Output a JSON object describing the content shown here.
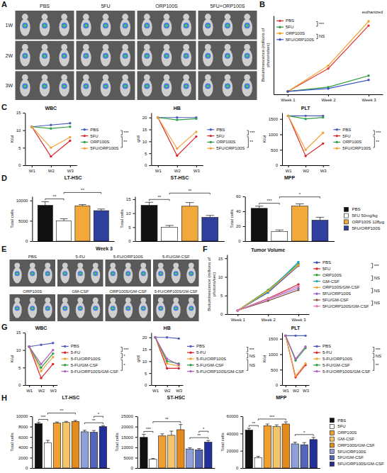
{
  "chart_data": [
    {
      "panel": "A",
      "type": "image",
      "columns": [
        "PBS",
        "5FU",
        "ORP100S",
        "5FU+ORP100S"
      ],
      "rows": [
        "1W",
        "2W",
        "3W"
      ]
    },
    {
      "panel": "B",
      "type": "line",
      "y_label": "Bioluminescence (millions of photons/sec)",
      "categories": [
        "Week 1",
        "Week 2",
        "Week 3"
      ],
      "series": [
        {
          "name": "PBS",
          "color": "#e0383a",
          "values": [
            0.4,
            3.6,
            9.6
          ]
        },
        {
          "name": "5FU",
          "color": "#2e9e3e",
          "values": [
            0.4,
            1.0,
            2.6
          ]
        },
        {
          "name": "ORP100S",
          "color": "#f0a020",
          "values": [
            0.4,
            4.0,
            10.2
          ]
        },
        {
          "name": "5FU/ORP100S",
          "color": "#3c55c8",
          "values": [
            0.4,
            0.8,
            2.0
          ]
        }
      ],
      "ylim": [
        0,
        11
      ],
      "tick_labels": "x",
      "legend": "upper left",
      "marker": "circle",
      "annotations": [
        {
          "text": "***",
          "from": "PBS",
          "to": "5FU"
        },
        {
          "text": "NS",
          "from": "ORP100S",
          "to": "5FU/ORP100S"
        }
      ],
      "note": "euthanized"
    },
    {
      "panel": "C",
      "type": "line",
      "categories": [
        "W1",
        "W2",
        "W3"
      ],
      "marker": "circle",
      "legend": "right",
      "series": [
        {
          "name": "PBS",
          "color": "#4b5cb8"
        },
        {
          "name": "5FU",
          "color": "#d9262b"
        },
        {
          "name": "ORP100S",
          "color": "#2f9e44"
        },
        {
          "name": "5FU/ORP100S",
          "color": "#f2a33a"
        }
      ],
      "subplots": [
        {
          "title": "WBC",
          "y_label": "K/ul",
          "ylim": [
            0,
            15
          ],
          "yticks": [
            0,
            5,
            10,
            15
          ],
          "values": [
            [
              11,
              11.5,
              12
            ],
            [
              11,
              2.5,
              7
            ],
            [
              11,
              10.5,
              11
            ],
            [
              11,
              5,
              8
            ]
          ],
          "annotations": [
            {
              "text": "***",
              "from": "PBS",
              "to": "5FU"
            },
            {
              "text": "**",
              "from": "5FU",
              "to": "5FU/ORP100S"
            }
          ]
        },
        {
          "title": "HB",
          "y_label": "g/dl",
          "ylim": [
            0,
            22
          ],
          "yticks": [
            0,
            5,
            10,
            15,
            20
          ],
          "values": [
            [
              20,
              20,
              20
            ],
            [
              20,
              4,
              12
            ],
            [
              20,
              19,
              19.5
            ],
            [
              20,
              7,
              14
            ]
          ],
          "annotations": [
            {
              "text": "***",
              "from": "PBS",
              "to": "5FU"
            },
            {
              "text": "**",
              "from": "5FU",
              "to": "5FU/ORP100S"
            }
          ]
        },
        {
          "title": "PLT",
          "y_label": "K/ul",
          "ylim": [
            0,
            1700
          ],
          "yticks": [
            0,
            500,
            1000,
            1500
          ],
          "values": [
            [
              1600,
              1600,
              1600
            ],
            [
              1600,
              300,
              700
            ],
            [
              1600,
              1500,
              1550
            ],
            [
              1600,
              500,
              1050
            ]
          ],
          "annotations": [
            {
              "text": "***",
              "from": "PBS",
              "to": "5FU"
            },
            {
              "text": "**",
              "from": "5FU",
              "to": "5FU/ORP100S"
            }
          ]
        }
      ]
    },
    {
      "panel": "D",
      "type": "bar",
      "categories": [
        "PBS",
        "5FU 50mg/kg",
        "ORP100S 128μg",
        "5FU/ORP100S"
      ],
      "colors": [
        "#111111",
        "#ffffff",
        "#f2a93b",
        "#2f3f9e"
      ],
      "legend": "right",
      "tick_labels": "y",
      "y_label": "Total cells",
      "subplots": [
        {
          "title": "LT-HSC",
          "ylim": [
            0,
            11000
          ],
          "yticks": [
            0,
            5000,
            10000
          ],
          "values": [
            8800,
            5000,
            8700,
            7500
          ],
          "errors": [
            900,
            500,
            300,
            400
          ],
          "annotations": [
            {
              "text": "**",
              "from": "PBS",
              "to": "5FU 50mg/kg"
            },
            {
              "text": "**",
              "from": "5FU 50mg/kg",
              "to": "5FU/ORP100S"
            }
          ]
        },
        {
          "title": "ST-HSC",
          "ylim": [
            0,
            16
          ],
          "yticks": [
            0,
            5,
            10,
            15
          ],
          "values": [
            12.8,
            5,
            12.5,
            8.5
          ],
          "errors": [
            1.1,
            0.6,
            1.3,
            0.7
          ],
          "annotations": [
            {
              "text": "**",
              "from": "PBS",
              "to": "5FU 50mg/kg"
            },
            {
              "text": "**",
              "from": "5FU 50mg/kg",
              "to": "5FU/ORP100S"
            }
          ]
        },
        {
          "title": "MPP",
          "ylim": [
            0,
            60
          ],
          "yticks": [
            0,
            20,
            40,
            60
          ],
          "values": [
            44,
            13,
            47,
            28
          ],
          "errors": [
            3,
            2,
            3,
            4
          ],
          "annotations": [
            {
              "text": "***",
              "from": "PBS",
              "to": "5FU 50mg/kg"
            },
            {
              "text": "*",
              "from": "5FU 50mg/kg",
              "to": "5FU/ORP100S"
            }
          ]
        }
      ]
    },
    {
      "panel": "E",
      "type": "image",
      "title": "Week 3",
      "groups": [
        "PBS",
        "5-FU",
        "5-FU/ORP100S",
        "5-FU/GM-CSF",
        "ORP100S",
        "GM-CSF",
        "ORP100S/GM-CSF",
        "5-FU/ORP100S/GM-CSF"
      ]
    },
    {
      "panel": "F",
      "type": "line",
      "title": "Tumor Volume",
      "y_label": "Bioluminescence (millions of photons/sec)",
      "categories": [
        "Week 1",
        "Week 2",
        "Week 3"
      ],
      "ylim": [
        0,
        16
      ],
      "yticks": [
        0,
        5,
        10,
        15
      ],
      "marker": "circle",
      "legend": "right",
      "series": [
        {
          "name": "PBS",
          "color": "#3b4ba8",
          "values": [
            1,
            5.8,
            13
          ]
        },
        {
          "name": "5FU",
          "color": "#d62728",
          "values": [
            1,
            4.2,
            8
          ]
        },
        {
          "name": "ORP100S",
          "color": "#2ca02c",
          "values": [
            1,
            6.5,
            13.5
          ]
        },
        {
          "name": "GM-CSF",
          "color": "#17a2b8",
          "values": [
            1,
            6,
            14
          ]
        },
        {
          "name": "ORP100S/GM-CSF",
          "color": "#f2a33a",
          "values": [
            1,
            6.2,
            13.2
          ]
        },
        {
          "name": "5FU/ORP100S",
          "color": "#9467bd",
          "values": [
            1,
            4,
            7
          ]
        },
        {
          "name": "5FU/GM-CSF",
          "color": "#8c564b",
          "values": [
            1,
            3.6,
            6.5
          ]
        },
        {
          "name": "5FU/ORP100S/GM-CSF",
          "color": "#e377c2",
          "values": [
            1,
            4.1,
            7.5
          ]
        }
      ],
      "annotations": [
        {
          "text": "***",
          "from": "PBS",
          "to": "5FU"
        },
        {
          "text": "NS",
          "from": "ORP100S",
          "to": "GM-CSF"
        },
        {
          "text": "NS",
          "from": "ORP100S/GM-CSF",
          "to": "5FU/ORP100S"
        },
        {
          "text": "NS",
          "from": "5FU/GM-CSF",
          "to": "5FU/ORP100S/GM-CSF"
        }
      ]
    },
    {
      "panel": "G",
      "type": "line",
      "categories": [
        "W1",
        "W2",
        "W3"
      ],
      "marker": "circle",
      "legend": "right",
      "series": [
        {
          "name": "PBS",
          "color": "#4b5cb8"
        },
        {
          "name": "5-FU",
          "color": "#d9262b"
        },
        {
          "name": "5-FU/ORP100S",
          "color": "#f2a33a"
        },
        {
          "name": "5-FU/GM-CSF",
          "color": "#2f9e44"
        },
        {
          "name": "5-FU/ORP100S/GM-CSF",
          "color": "#b05fc0"
        }
      ],
      "subplots": [
        {
          "title": "WBC",
          "y_label": "K/ul",
          "ylim": [
            0,
            15
          ],
          "yticks": [
            0,
            5,
            10,
            15
          ],
          "values": [
            [
              11,
              11.5,
              12
            ],
            [
              11,
              2,
              6
            ],
            [
              11,
              4,
              8
            ],
            [
              11,
              5,
              9
            ],
            [
              11,
              6,
              10
            ]
          ],
          "annotations": [
            {
              "text": "***",
              "from": "PBS",
              "to": "5-FU"
            },
            {
              "text": "*",
              "from": "5-FU",
              "to": "5-FU/ORP100S"
            },
            {
              "text": "*",
              "from": "5-FU/ORP100S",
              "to": "5-FU/ORP100S/GM-CSF"
            }
          ]
        },
        {
          "title": "HB",
          "y_label": "g/dl",
          "ylim": [
            0,
            22
          ],
          "yticks": [
            0,
            5,
            10,
            15,
            20
          ],
          "values": [
            [
              20,
              20,
              19.5
            ],
            [
              20,
              7,
              7
            ],
            [
              20,
              9,
              8
            ],
            [
              20,
              10,
              9
            ],
            [
              20,
              11,
              8.5
            ]
          ],
          "annotations": [
            {
              "text": "***",
              "from": "PBS",
              "to": "5-FU"
            },
            {
              "text": "NS",
              "from": "5-FU",
              "to": "5-FU/ORP100S"
            },
            {
              "text": "NS",
              "from": "5-FU/ORP100S",
              "to": "5-FU/ORP100S/GM-CSF"
            }
          ]
        },
        {
          "title": "PLT",
          "y_label": "K/ul",
          "ylim": [
            0,
            1700
          ],
          "yticks": [
            0,
            500,
            1000,
            1500
          ],
          "values": [
            [
              1600,
              1600,
              1600
            ],
            [
              1600,
              250,
              650
            ],
            [
              1600,
              300,
              700
            ],
            [
              1600,
              800,
              1200
            ],
            [
              1600,
              850,
              1250
            ]
          ],
          "annotations": [
            {
              "text": "***",
              "from": "PBS",
              "to": "5-FU"
            },
            {
              "text": "NS",
              "from": "5-FU",
              "to": "5-FU/ORP100S"
            },
            {
              "text": "**",
              "from": "5-FU/ORP100S",
              "to": "5-FU/ORP100S/GM-CSF"
            }
          ]
        }
      ]
    },
    {
      "panel": "H",
      "type": "bar",
      "categories": [
        "PBS",
        "5FU",
        "ORP100S",
        "GM-CSF",
        "ORP100S/GM-CSF",
        "5FU/ORP100S",
        "5FU/GM-CSF",
        "5FU/ORP100S/GM-CSF"
      ],
      "colors": [
        "#111111",
        "#ffffff",
        "#f0a030",
        "#f6c46a",
        "#e38b1f",
        "#8f9fd8",
        "#5566b8",
        "#22309a"
      ],
      "legend": "right",
      "tick_labels": "y",
      "y_label": "Total cells",
      "subplots": [
        {
          "title": "LT-HSC",
          "ylim": [
            0,
            10000
          ],
          "yticks": [
            0,
            2000,
            4000,
            6000,
            8000,
            10000
          ],
          "values": [
            8600,
            4900,
            8700,
            8800,
            9000,
            7000,
            6900,
            8000
          ],
          "errors": [
            250,
            450,
            200,
            200,
            200,
            300,
            350,
            200
          ],
          "annotations": [
            {
              "text": "***",
              "from": "PBS",
              "to": "5FU"
            },
            {
              "text": "**",
              "from": "5FU",
              "to": "ORP100S/GM-CSF"
            },
            {
              "text": "**",
              "from": "5FU/ORP100S",
              "to": "5FU/ORP100S/GM-CSF"
            },
            {
              "text": "*",
              "from": "5FU/GM-CSF",
              "to": "5FU/ORP100S/GM-CSF"
            }
          ]
        },
        {
          "title": "ST-HSC",
          "ylim": [
            0,
            25000
          ],
          "yticks": [
            0,
            5000,
            10000,
            15000,
            20000,
            25000
          ],
          "values": [
            14800,
            4200,
            15500,
            15800,
            18500,
            9200,
            8800,
            12500
          ],
          "errors": [
            1500,
            400,
            1000,
            2000,
            2500,
            600,
            600,
            800
          ],
          "annotations": [
            {
              "text": "***",
              "from": "PBS",
              "to": "5FU"
            },
            {
              "text": "**",
              "from": "5FU",
              "to": "ORP100S/GM-CSF"
            },
            {
              "text": "**",
              "from": "5FU/ORP100S",
              "to": "5FU/ORP100S/GM-CSF"
            },
            {
              "text": "*",
              "from": "5FU/GM-CSF",
              "to": "5FU/ORP100S/GM-CSF"
            }
          ]
        },
        {
          "title": "MPP",
          "ylim": [
            0,
            60000
          ],
          "yticks": [
            0,
            20000,
            40000,
            60000
          ],
          "values": [
            44000,
            12000,
            49000,
            48000,
            51000,
            28000,
            27000,
            33000
          ],
          "errors": [
            2000,
            1500,
            2000,
            2000,
            2500,
            2000,
            2500,
            2500
          ],
          "annotations": [
            {
              "text": "**",
              "from": "PBS",
              "to": "5FU"
            },
            {
              "text": "***",
              "from": "5FU",
              "to": "ORP100S/GM-CSF"
            },
            {
              "text": "*",
              "from": "5FU/ORP100S",
              "to": "5FU/ORP100S/GM-CSF"
            }
          ]
        }
      ]
    }
  ]
}
